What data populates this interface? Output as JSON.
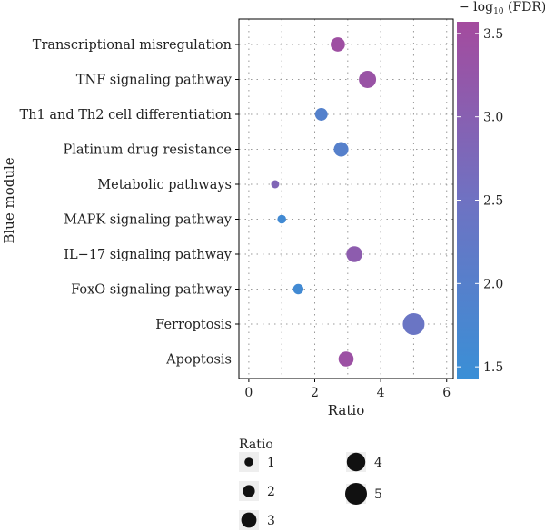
{
  "chart_data": {
    "type": "scatter",
    "ylabel": "Blue module",
    "xlabel": "Ratio",
    "categories": [
      "Transcriptional misregulation",
      "TNF signaling pathway",
      "Th1 and Th2 cell differentiation",
      "Platinum drug resistance",
      "Metabolic pathways",
      "MAPK signaling pathway",
      "IL−17 signaling pathway",
      "FoxO signaling pathway",
      "Ferroptosis",
      "Apoptosis"
    ],
    "points": [
      {
        "category": "Transcriptional misregulation",
        "ratio": 2.7,
        "neg_log10_fdr": 3.45
      },
      {
        "category": "TNF signaling pathway",
        "ratio": 3.6,
        "neg_log10_fdr": 3.35
      },
      {
        "category": "Th1 and Th2 cell differentiation",
        "ratio": 2.2,
        "neg_log10_fdr": 1.95
      },
      {
        "category": "Platinum drug resistance",
        "ratio": 2.8,
        "neg_log10_fdr": 2.0
      },
      {
        "category": "Metabolic pathways",
        "ratio": 0.8,
        "neg_log10_fdr": 2.85
      },
      {
        "category": "MAPK signaling pathway",
        "ratio": 1.0,
        "neg_log10_fdr": 1.6
      },
      {
        "category": "IL−17 signaling pathway",
        "ratio": 3.2,
        "neg_log10_fdr": 3.1
      },
      {
        "category": "FoxO signaling pathway",
        "ratio": 1.5,
        "neg_log10_fdr": 1.6
      },
      {
        "category": "Ferroptosis",
        "ratio": 5.0,
        "neg_log10_fdr": 2.4
      },
      {
        "category": "Apoptosis",
        "ratio": 2.95,
        "neg_log10_fdr": 3.4
      }
    ],
    "xlim": [
      -0.3,
      6.2
    ],
    "xticks": [
      "0",
      "2",
      "4",
      "6"
    ],
    "xtick_values": [
      0,
      2,
      4,
      6
    ],
    "color_scale": {
      "title_prefix": "− log",
      "title_sub": "10",
      "title_suffix": " (FDR)",
      "min": 1.43,
      "max": 3.57,
      "ticks": [
        "1.5",
        "2.0",
        "2.5",
        "3.0",
        "3.5"
      ],
      "tick_values": [
        1.5,
        2.0,
        2.5,
        3.0,
        3.5
      ],
      "low_color": "#3a8fd6",
      "high_color": "#a44b9e"
    },
    "size_legend": {
      "title": "Ratio",
      "items": [
        {
          "label": "1",
          "value": 1
        },
        {
          "label": "2",
          "value": 2
        },
        {
          "label": "3",
          "value": 3
        },
        {
          "label": "4",
          "value": 4
        },
        {
          "label": "5",
          "value": 5
        }
      ]
    },
    "grid": true
  }
}
